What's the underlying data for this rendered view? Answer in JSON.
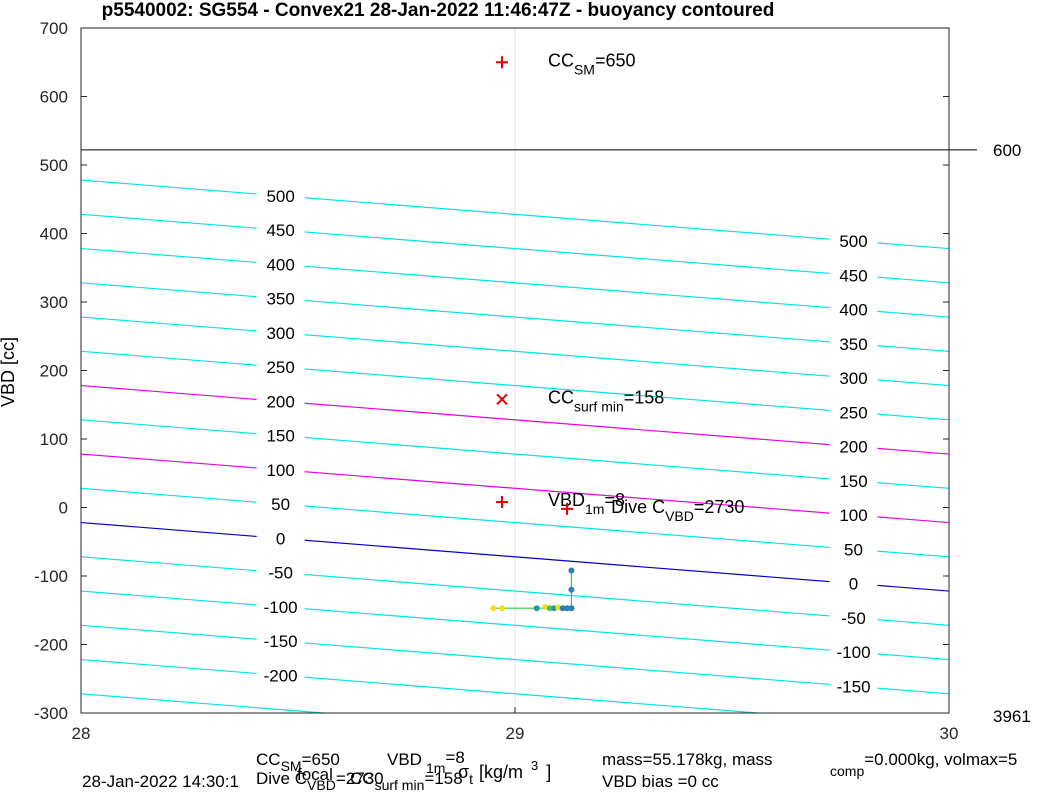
{
  "chart_data": {
    "type": "line",
    "title": "p5540002: SG554 - Convex21 28-Jan-2022 11:46:47Z - buoyancy contoured",
    "ylabel": "VBD [cc]",
    "xlabel_parts": {
      "base": "σ",
      "sub": "t",
      "unit": "[kg/m",
      "sup": "3",
      "close": "]"
    },
    "xlim": [
      28,
      30
    ],
    "ylim": [
      -300,
      700
    ],
    "x_ticks": [
      "28",
      "29",
      "30"
    ],
    "y_ticks": [
      "-300",
      "-200",
      "-100",
      "0",
      "100",
      "200",
      "300",
      "400",
      "500",
      "600",
      "700"
    ],
    "right_ticks": [
      "600",
      "3961"
    ],
    "grid": "x=29 only",
    "contour_levels": [
      "-250",
      "-200",
      "-150",
      "-100",
      "-50",
      "0",
      "50",
      "100",
      "150",
      "200",
      "250",
      "300",
      "350",
      "400",
      "450",
      "500"
    ],
    "contour_colors": {
      "default": "#00e5e5",
      "zero": "#0000c8",
      "emphasis": "#e600e6"
    },
    "emphasized_levels": [
      "100",
      "200"
    ],
    "contour_slope_vbd_per_sigma": -50,
    "contour_spacing_vbd": 50,
    "zero_contour_vbd_at_x28": -22,
    "max_line_vbd": 522,
    "markers": [
      {
        "name": "cc-sm",
        "x": 28.97,
        "y": 650,
        "symbol": "+",
        "label": "CC",
        "sub": "SM",
        "value": "=650"
      },
      {
        "name": "cc-surf-min",
        "x": 28.97,
        "y": 158,
        "symbol": "x",
        "label": "CC",
        "sub": "surf min",
        "value": "=158"
      },
      {
        "name": "vbd-1m",
        "x": 28.97,
        "y": 8,
        "symbol": "+",
        "label": "VBD",
        "sub": "1m",
        "value": "=8"
      },
      {
        "name": "dive-c-vbd",
        "x": 29.12,
        "y": -2,
        "symbol": "+",
        "label": "Dive C",
        "sub": "VBD",
        "value": "=2730"
      }
    ],
    "dive_points": {
      "x": [
        28.95,
        28.97,
        29.05,
        29.07,
        29.08,
        29.09,
        29.1,
        29.11,
        29.12,
        29.13,
        29.13,
        29.13
      ],
      "y": [
        -147,
        -147,
        -147,
        -145,
        -147,
        -147,
        -146,
        -147,
        -147,
        -147,
        -120,
        -92
      ],
      "colors": [
        "#f2e01c",
        "#f2e01c",
        "#1e9e9e",
        "#f2e01c",
        "#4ec26a",
        "#1e9e9e",
        "#f2e01c",
        "#2a7fb8",
        "#2a7fb8",
        "#2a7fb8",
        "#2a7fb8",
        "#2a7fb8"
      ]
    }
  },
  "footer": {
    "cc_sm": {
      "pre": "CC",
      "sub": "SM",
      "post": "=650"
    },
    "vbd_1m": {
      "pre": "VBD",
      "sub": "1m",
      "post": "=8"
    },
    "mass_text": "mass=55.178kg, mass",
    "mass_comp": {
      "sub": "comp",
      "post": "=0.000kg, volmax=5"
    },
    "date": "28-Jan-2022 14:30:1",
    "dive_c": {
      "pre": "Dive C",
      "sub": "VBD",
      "post": "=2730"
    },
    "focal": "focal",
    "cc_surf_min": {
      "pre": "CC",
      "sub": "surf min",
      "post": "=158"
    },
    "vbd_bias": "VBD bias =0 cc"
  }
}
